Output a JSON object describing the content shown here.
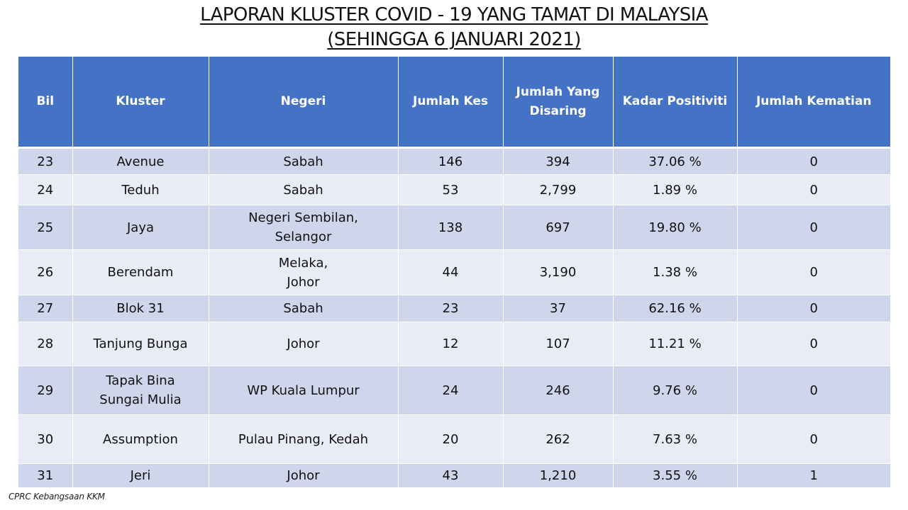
{
  "title": {
    "line1": "LAPORAN KLUSTER COVID - 19 YANG TAMAT DI MALAYSIA",
    "line2": "(SEHINGGA 6 JANUARI 2021)"
  },
  "table": {
    "headers": {
      "bil": "Bil",
      "kluster": "Kluster",
      "negeri": "Negeri",
      "jumlah_kes": "Jumlah Kes",
      "jumlah_disaring_1": "Jumlah Yang",
      "jumlah_disaring_2": "Disaring",
      "kadar_positiviti": "Kadar Positiviti",
      "jumlah_kematian": "Jumlah Kematian"
    },
    "rows": [
      {
        "bil": "23",
        "kluster_1": "Avenue",
        "kluster_2": "",
        "negeri_1": "Sabah",
        "negeri_2": "",
        "kes": "146",
        "disaring": "394",
        "positiviti": "37.06 %",
        "kematian": "0"
      },
      {
        "bil": "24",
        "kluster_1": "Teduh",
        "kluster_2": "",
        "negeri_1": "Sabah",
        "negeri_2": "",
        "kes": "53",
        "disaring": "2,799",
        "positiviti": "1.89 %",
        "kematian": "0"
      },
      {
        "bil": "25",
        "kluster_1": "Jaya",
        "kluster_2": "",
        "negeri_1": "Negeri Sembilan,",
        "negeri_2": "Selangor",
        "kes": "138",
        "disaring": "697",
        "positiviti": "19.80 %",
        "kematian": "0"
      },
      {
        "bil": "26",
        "kluster_1": "Berendam",
        "kluster_2": "",
        "negeri_1": "Melaka,",
        "negeri_2": "Johor",
        "kes": "44",
        "disaring": "3,190",
        "positiviti": "1.38 %",
        "kematian": "0"
      },
      {
        "bil": "27",
        "kluster_1": "Blok 31",
        "kluster_2": "",
        "negeri_1": "Sabah",
        "negeri_2": "",
        "kes": "23",
        "disaring": "37",
        "positiviti": "62.16 %",
        "kematian": "0"
      },
      {
        "bil": "28",
        "kluster_1": "Tanjung Bunga",
        "kluster_2": "",
        "negeri_1": "Johor",
        "negeri_2": "",
        "kes": "12",
        "disaring": "107",
        "positiviti": "11.21 %",
        "kematian": "0"
      },
      {
        "bil": "29",
        "kluster_1": "Tapak Bina",
        "kluster_2": "Sungai Mulia",
        "negeri_1": "WP Kuala Lumpur",
        "negeri_2": "",
        "kes": "24",
        "disaring": "246",
        "positiviti": "9.76 %",
        "kematian": "0"
      },
      {
        "bil": "30",
        "kluster_1": "Assumption",
        "kluster_2": "",
        "negeri_1": "Pulau Pinang, Kedah",
        "negeri_2": "",
        "kes": "20",
        "disaring": "262",
        "positiviti": "7.63 %",
        "kematian": "0"
      },
      {
        "bil": "31",
        "kluster_1": "Jeri",
        "kluster_2": "",
        "negeri_1": "Johor",
        "negeri_2": "",
        "kes": "43",
        "disaring": "1,210",
        "positiviti": "3.55 %",
        "kematian": "1"
      }
    ]
  },
  "footer": {
    "source": "CPRC Kebangsaan KKM"
  },
  "colors": {
    "header_bg": "#4472c4",
    "row_dark": "#cfd5ea",
    "row_light": "#e9ebf5"
  }
}
